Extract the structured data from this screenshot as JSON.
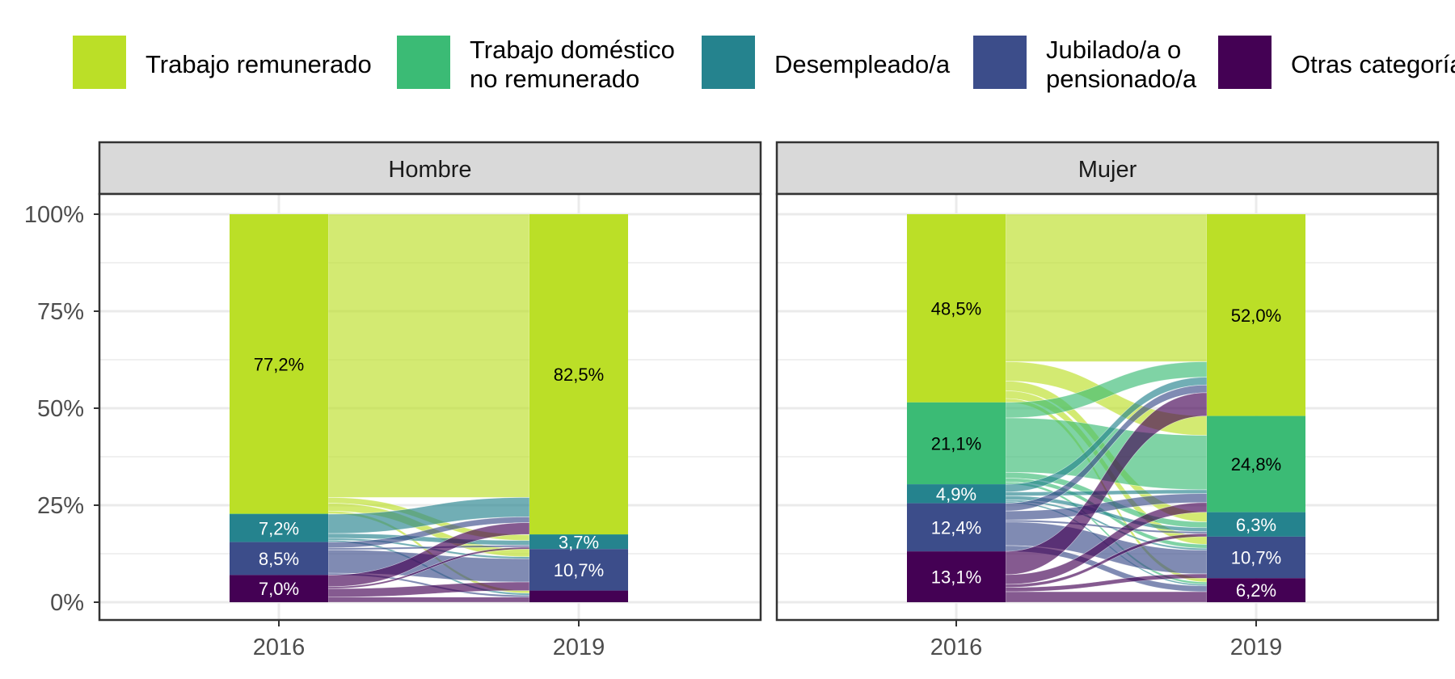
{
  "chart_data": {
    "type": "alluvial",
    "categories": [
      "Trabajo remunerado",
      "Trabajo doméstico no remunerado",
      "Desempleado/a",
      "Jubilado/a o pensionado/a",
      "Otras categorías"
    ],
    "legend": {
      "placement": "top",
      "entries": [
        {
          "key": "remunerado",
          "lines": [
            "Trabajo remunerado"
          ],
          "color": "#BBDF27"
        },
        {
          "key": "domestico",
          "lines": [
            "Trabajo doméstico",
            "no remunerado"
          ],
          "color": "#3BBB75"
        },
        {
          "key": "desempleado",
          "lines": [
            "Desempleado/a"
          ],
          "color": "#25838E"
        },
        {
          "key": "jubilado",
          "lines": [
            "Jubilado/a o",
            "pensionado/a"
          ],
          "color": "#3C4D8A"
        },
        {
          "key": "otras",
          "lines": [
            "Otras categorías"
          ],
          "color": "#440154"
        }
      ]
    },
    "x": [
      "2016",
      "2019"
    ],
    "y_ticks": [
      "0%",
      "25%",
      "50%",
      "75%",
      "100%"
    ],
    "ylim": [
      0,
      100
    ],
    "grid": true,
    "panels": [
      {
        "title": "Hombre",
        "values": {
          "2016": {
            "remunerado": 77.2,
            "domestico": 0.1,
            "desempleado": 7.2,
            "jubilado": 8.5,
            "otras": 7.0
          },
          "2019": {
            "remunerado": 82.5,
            "domestico": 0.1,
            "desempleado": 3.7,
            "jubilado": 10.7,
            "otras": 3.0
          }
        },
        "labels": {
          "2016": {
            "remunerado": "77,2%",
            "desempleado": "7,2%",
            "jubilado": "8,5%",
            "otras": "7,0%"
          },
          "2019": {
            "remunerado": "82,5%",
            "desempleado": "3,7%",
            "jubilado": "10,7%"
          }
        },
        "flows": [
          {
            "from": "remunerado",
            "to": "remunerado",
            "value": 73.0
          },
          {
            "from": "remunerado",
            "to": "desempleado",
            "value": 1.5
          },
          {
            "from": "remunerado",
            "to": "jubilado",
            "value": 2.0
          },
          {
            "from": "remunerado",
            "to": "otras",
            "value": 0.7
          },
          {
            "from": "desempleado",
            "to": "remunerado",
            "value": 5.0
          },
          {
            "from": "desempleado",
            "to": "desempleado",
            "value": 1.2
          },
          {
            "from": "desempleado",
            "to": "jubilado",
            "value": 0.5
          },
          {
            "from": "desempleado",
            "to": "otras",
            "value": 0.5
          },
          {
            "from": "jubilado",
            "to": "remunerado",
            "value": 1.5
          },
          {
            "from": "jubilado",
            "to": "desempleado",
            "value": 0.5
          },
          {
            "from": "jubilado",
            "to": "jubilado",
            "value": 6.0
          },
          {
            "from": "jubilado",
            "to": "otras",
            "value": 0.5
          },
          {
            "from": "otras",
            "to": "remunerado",
            "value": 3.0
          },
          {
            "from": "otras",
            "to": "desempleado",
            "value": 0.5
          },
          {
            "from": "otras",
            "to": "jubilado",
            "value": 2.2
          },
          {
            "from": "otras",
            "to": "otras",
            "value": 1.3
          }
        ]
      },
      {
        "title": "Mujer",
        "values": {
          "2016": {
            "remunerado": 48.5,
            "domestico": 21.1,
            "desempleado": 4.9,
            "jubilado": 12.4,
            "otras": 13.1
          },
          "2019": {
            "remunerado": 52.0,
            "domestico": 24.8,
            "desempleado": 6.3,
            "jubilado": 10.7,
            "otras": 6.2
          }
        },
        "labels": {
          "2016": {
            "remunerado": "48,5%",
            "domestico": "21,1%",
            "desempleado": "4,9%",
            "jubilado": "12,4%",
            "otras": "13,1%"
          },
          "2019": {
            "remunerado": "52,0%",
            "domestico": "24,8%",
            "desempleado": "6,3%",
            "jubilado": "10,7%",
            "otras": "6,2%"
          }
        },
        "flows": [
          {
            "from": "remunerado",
            "to": "remunerado",
            "value": 38.0
          },
          {
            "from": "remunerado",
            "to": "domestico",
            "value": 5.0
          },
          {
            "from": "remunerado",
            "to": "desempleado",
            "value": 2.5
          },
          {
            "from": "remunerado",
            "to": "jubilado",
            "value": 2.0
          },
          {
            "from": "remunerado",
            "to": "otras",
            "value": 1.0
          },
          {
            "from": "domestico",
            "to": "remunerado",
            "value": 4.0
          },
          {
            "from": "domestico",
            "to": "domestico",
            "value": 14.0
          },
          {
            "from": "domestico",
            "to": "desempleado",
            "value": 1.5
          },
          {
            "from": "domestico",
            "to": "jubilado",
            "value": 1.0
          },
          {
            "from": "domestico",
            "to": "otras",
            "value": 0.6
          },
          {
            "from": "desempleado",
            "to": "remunerado",
            "value": 2.0
          },
          {
            "from": "desempleado",
            "to": "domestico",
            "value": 1.0
          },
          {
            "from": "desempleado",
            "to": "desempleado",
            "value": 1.0
          },
          {
            "from": "desempleado",
            "to": "jubilado",
            "value": 0.5
          },
          {
            "from": "desempleado",
            "to": "otras",
            "value": 0.4
          },
          {
            "from": "jubilado",
            "to": "remunerado",
            "value": 2.0
          },
          {
            "from": "jubilado",
            "to": "domestico",
            "value": 2.3
          },
          {
            "from": "jubilado",
            "to": "desempleado",
            "value": 0.5
          },
          {
            "from": "jubilado",
            "to": "jubilado",
            "value": 6.1
          },
          {
            "from": "jubilado",
            "to": "otras",
            "value": 1.5
          },
          {
            "from": "otras",
            "to": "remunerado",
            "value": 6.0
          },
          {
            "from": "otras",
            "to": "domestico",
            "value": 2.5
          },
          {
            "from": "otras",
            "to": "desempleado",
            "value": 0.8
          },
          {
            "from": "otras",
            "to": "jubilado",
            "value": 1.1
          },
          {
            "from": "otras",
            "to": "otras",
            "value": 2.7
          }
        ]
      }
    ]
  }
}
